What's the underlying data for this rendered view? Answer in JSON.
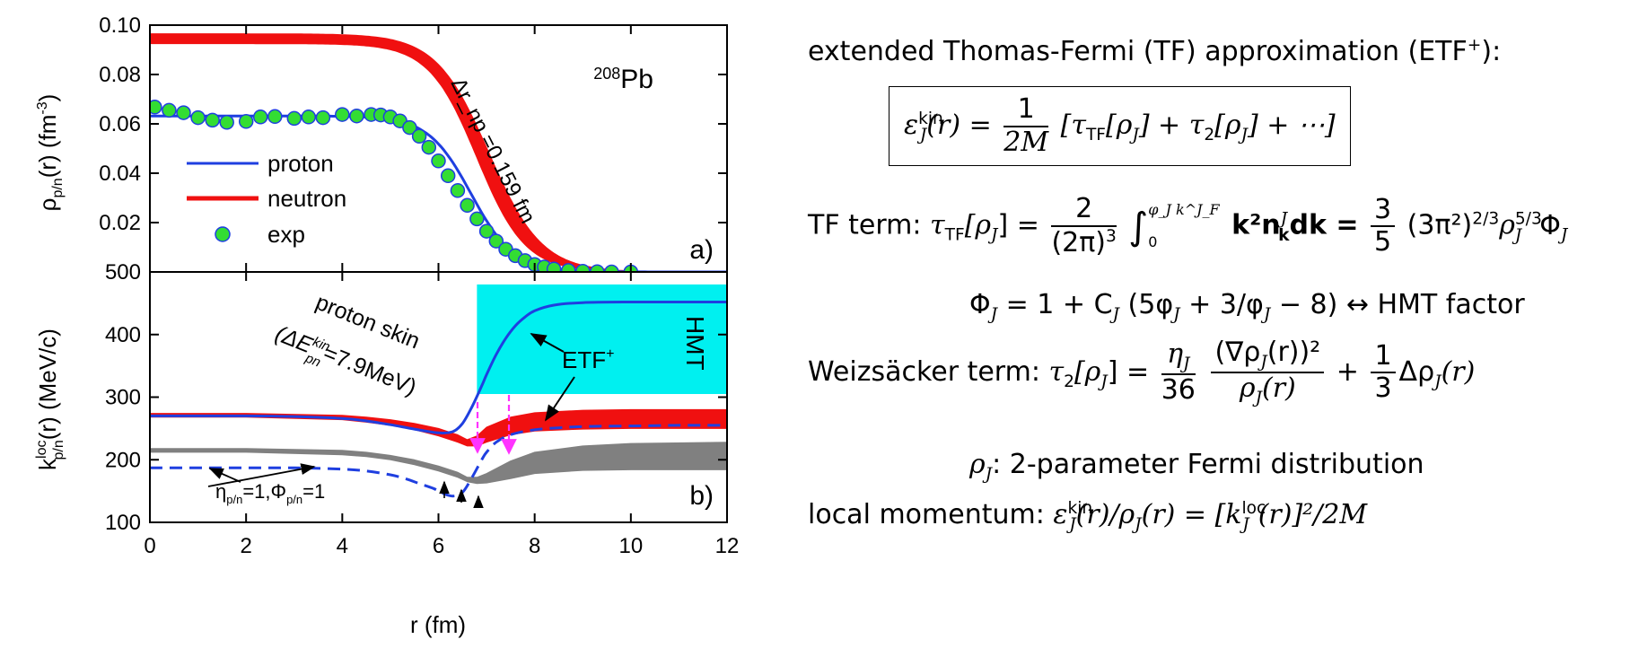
{
  "chart_data": [
    {
      "panel": "a",
      "type": "line",
      "title": "",
      "ylabel": "ρ_p/n(r) (fm^-3)",
      "xlabel": "",
      "xlim": [
        0,
        12
      ],
      "ylim": [
        0,
        0.1
      ],
      "yticks": [
        "0.00",
        "0.02",
        "0.04",
        "0.06",
        "0.08",
        "0.10"
      ],
      "nucleus_label": "208Pb",
      "panel_label": "a)",
      "annotation": "Δr_np =0.159 fm",
      "legend": {
        "placement": "center-left",
        "entries": [
          "proton",
          "neutron",
          "exp"
        ]
      },
      "colors": {
        "proton": "#1f3fe0",
        "neutron": "#f01010",
        "exp_fill": "#33dd33",
        "exp_edge": "#1f3fe0"
      },
      "series": [
        {
          "name": "proton",
          "kind": "line",
          "fermi": {
            "rho0": 0.0632,
            "R": 6.68,
            "a": 0.447
          }
        },
        {
          "name": "neutron",
          "kind": "band",
          "fermi_lo": {
            "rho0": 0.0925,
            "R": 6.8,
            "a": 0.5
          },
          "fermi_hi": {
            "rho0": 0.0965,
            "R": 7.05,
            "a": 0.55
          }
        },
        {
          "name": "exp",
          "kind": "scatter",
          "x": [
            0.1,
            0.4,
            0.7,
            1.0,
            1.3,
            1.6,
            2.0,
            2.3,
            2.6,
            3.0,
            3.3,
            3.6,
            4.0,
            4.3,
            4.6,
            4.8,
            5.0,
            5.2,
            5.4,
            5.6,
            5.8,
            6.0,
            6.2,
            6.4,
            6.6,
            6.8,
            7.0,
            7.2,
            7.4,
            7.6,
            7.8,
            8.0,
            8.2,
            8.4,
            8.7,
            9.0,
            9.3,
            9.6,
            10.0
          ],
          "y": [
            0.0668,
            0.0655,
            0.0645,
            0.0625,
            0.0615,
            0.0606,
            0.061,
            0.0628,
            0.063,
            0.0622,
            0.0628,
            0.0625,
            0.0638,
            0.0632,
            0.0638,
            0.0636,
            0.0628,
            0.0612,
            0.0585,
            0.055,
            0.0505,
            0.045,
            0.039,
            0.033,
            0.027,
            0.0215,
            0.0165,
            0.0125,
            0.0092,
            0.0066,
            0.0046,
            0.003,
            0.002,
            0.0012,
            0.0006,
            0.0003,
            0.0001,
            0.0,
            0.0
          ]
        }
      ]
    },
    {
      "panel": "b",
      "type": "line",
      "title": "",
      "ylabel": "k^loc_p/n(r) (MeV/c)",
      "xlabel": "r (fm)",
      "xlim": [
        0,
        12
      ],
      "ylim": [
        100,
        500
      ],
      "xticks": [
        "0",
        "2",
        "4",
        "6",
        "8",
        "10",
        "12"
      ],
      "yticks": [
        "100",
        "200",
        "300",
        "400",
        "500"
      ],
      "panel_label": "b)",
      "hmt_label": "HMT",
      "hmt_region": {
        "x": [
          6.8,
          12
        ],
        "y": [
          305,
          480
        ]
      },
      "annotations": {
        "proton_skin": "proton skin",
        "delta_e": "(ΔE^kin_pn=7.9MeV)",
        "etf": "ETF+",
        "eta_phi": "η_p/n=1,Φ_p/n=1"
      },
      "colors": {
        "proton": "#1f3fe0",
        "neutron_band": "#f01010",
        "gray_band": "#808080",
        "hmt": "#00f0f0",
        "arrow_magenta": "#ff33ff"
      },
      "series": [
        {
          "name": "proton ETF+ (solid)",
          "x": [
            0,
            2,
            3,
            4,
            4.5,
            5,
            5.5,
            6.0,
            6.3,
            6.5,
            6.7,
            6.9,
            7.0,
            7.2,
            7.4,
            7.6,
            7.8,
            8.0,
            8.4,
            9.0,
            10,
            11,
            12
          ],
          "y": [
            270,
            270,
            269,
            266,
            262,
            256,
            249,
            243,
            245,
            258,
            285,
            318,
            336,
            368,
            394,
            414,
            428,
            438,
            447,
            451,
            452,
            452,
            452
          ]
        },
        {
          "name": "proton η=1,Φ=1 (dashed)",
          "x": [
            0,
            1,
            2,
            3,
            4,
            4.5,
            5,
            5.3,
            5.6,
            5.9,
            6.1,
            6.3,
            6.5,
            6.7,
            6.9,
            7.0,
            7.2,
            7.5,
            8.0,
            8.5,
            9,
            10,
            11,
            12
          ],
          "y": [
            187,
            187,
            187,
            187,
            185,
            182,
            176,
            170,
            162,
            154,
            146,
            142,
            148,
            172,
            200,
            212,
            228,
            240,
            248,
            251,
            253,
            254,
            255,
            255
          ]
        },
        {
          "name": "neutron ETF+ band",
          "x": [
            0,
            2,
            4,
            4.5,
            5,
            5.5,
            6.0,
            6.4,
            6.6,
            6.8,
            7.0,
            7.5,
            8.0,
            9,
            10,
            12
          ],
          "y_lo": [
            268,
            268,
            264,
            260,
            255,
            248,
            238,
            228,
            222,
            222,
            228,
            240,
            246,
            249,
            250,
            250
          ],
          "y_hi": [
            274,
            274,
            271,
            268,
            264,
            258,
            250,
            240,
            232,
            238,
            252,
            268,
            275,
            279,
            280,
            280
          ]
        },
        {
          "name": "neutron η=1,Φ=1 band",
          "x": [
            0,
            2,
            4,
            4.5,
            5,
            5.5,
            6.0,
            6.4,
            6.6,
            6.8,
            7.0,
            7.5,
            8.0,
            9,
            10,
            12
          ],
          "y_lo": [
            212,
            212,
            208,
            205,
            200,
            192,
            182,
            172,
            165,
            162,
            163,
            170,
            178,
            183,
            184,
            184
          ],
          "y_hi": [
            218,
            218,
            215,
            212,
            207,
            200,
            190,
            180,
            172,
            172,
            178,
            198,
            212,
            222,
            226,
            228
          ]
        }
      ]
    }
  ],
  "theory": {
    "heading": "extended Thomas-Fermi (TF) approximation (ETF",
    "heading_sup": "+",
    "heading_end": "):",
    "eq_kin": {
      "lhs": "ε",
      "lhs_sup": "kin",
      "lhs_sub": "J",
      "lhs_arg": "(r) =",
      "num": "1",
      "den": "2M",
      "rhs": "[τ",
      "rhs_sub1": "TF",
      "rhs_mid": "[ρ",
      "rhs_sub2": "J",
      "rhs_mid2": "] + τ",
      "rhs_sub3": "2",
      "rhs_mid3": "[ρ",
      "rhs_sub4": "J",
      "rhs_end": "] + ⋯]"
    },
    "tf_label": "TF term:",
    "tf_eq": {
      "lhs": "τ",
      "lhs_sub": "TF",
      "lhs_arg": "[ρ",
      "lhs_sub2": "J",
      "lhs_end": "] =",
      "num1": "2",
      "den1": "(2π)",
      "den1_sup": "3",
      "int": "∫",
      "int_upper": "φ_J k^J_F",
      "int_lower": "0",
      "integrand": "k²n",
      "integrand_sup": "J",
      "integrand_sub": "k",
      "integrand_end": "dk =",
      "num2": "3",
      "den2": "5",
      "rest": "(3π²)",
      "rest_sup": "2/3",
      "rest2": "ρ",
      "rest2_sup": "5/3",
      "rest2_sub": "J",
      "rest3": "Φ",
      "rest3_sub": "J"
    },
    "phi_eq": "Φ_J = 1 + C_J (5φ_J + 3/φ_J − 8) ↔ HMT factor",
    "phi_lhs": "Φ",
    "phi_lhs_sub": "J",
    "phi_mid": " = 1 + C",
    "phi_mid_sub": "J",
    "phi_paren": " (5φ",
    "phi_paren_sub": "J",
    "phi_paren2": " + 3/φ",
    "phi_paren2_sub": "J",
    "phi_end": " − 8) ↔ HMT factor",
    "w_label": "Weizsäcker term:",
    "w_eq": {
      "lhs": "τ",
      "lhs_sub": "2",
      "lhs_arg": "[ρ",
      "lhs_sub2": "J",
      "lhs_end": "] =",
      "num1": "η",
      "num1_sub": "J",
      "den1": "36",
      "num2": "(∇ρ",
      "num2_sub": "J",
      "num2_end": "(r))²",
      "den2": "ρ",
      "den2_sub": "J",
      "den2_end": "(r)",
      "plus": "+",
      "num3": "1",
      "den3": "3",
      "end": "Δρ",
      "end_sub": "J",
      "end2": "(r)"
    },
    "fermi": {
      "sym": "ρ",
      "sub": "J",
      "text": ": 2-parameter Fermi distribution"
    },
    "local": {
      "label": "local momentum:",
      "lhs": "ε",
      "lhs_sup": "kin",
      "lhs_sub": "J",
      "mid": "(r)/ρ",
      "mid_sub": "J",
      "mid2": "(r) = [k",
      "k_sup": "loc",
      "k_sub": "J",
      "end": "(r)]²/2M"
    }
  }
}
